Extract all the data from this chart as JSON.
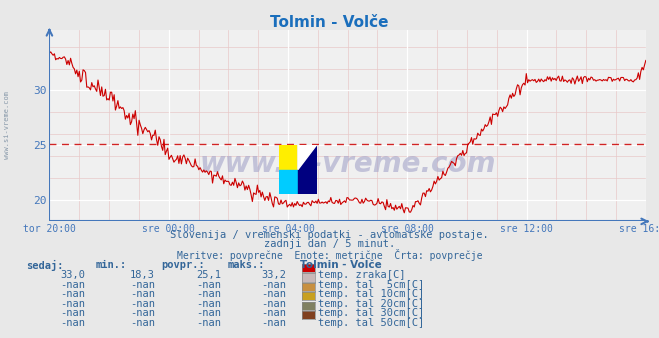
{
  "title": "Tolmin - Volče",
  "title_color": "#1a6ebc",
  "bg_color": "#e8e8e8",
  "plot_bg_color": "#f0f0f0",
  "grid_color_major": "#ffffff",
  "grid_color_minor": "#e8c8c8",
  "line_color": "#cc0000",
  "axis_color": "#4477bb",
  "avg_line_color": "#cc0000",
  "avg_value": 25.1,
  "y_min": 18.0,
  "y_max": 35.5,
  "y_ticks": [
    20,
    25,
    30
  ],
  "x_labels": [
    "tor 20:00",
    "sre 00:00",
    "sre 04:00",
    "sre 08:00",
    "sre 12:00",
    "sre 16:00"
  ],
  "x_tick_positions": [
    0,
    96,
    192,
    288,
    384,
    480
  ],
  "total_points": 480,
  "subtitle1": "Slovenija / vremenski podatki - avtomatske postaje.",
  "subtitle2": "zadnji dan / 5 minut.",
  "subtitle3": "Meritve: povprečne  Enote: metrične  Črta: povprečje",
  "subtitle_color": "#336699",
  "table_header_color": "#336699",
  "table_data_color": "#336699",
  "legend_title": "Tolmin - Volče",
  "legend_items": [
    {
      "label": "temp. zraka[C]",
      "color": "#cc0000"
    },
    {
      "label": "temp. tal  5cm[C]",
      "color": "#c8b8b8"
    },
    {
      "label": "temp. tal 10cm[C]",
      "color": "#c89040"
    },
    {
      "label": "temp. tal 20cm[C]",
      "color": "#c8a020"
    },
    {
      "label": "temp. tal 30cm[C]",
      "color": "#808060"
    },
    {
      "label": "temp. tal 50cm[C]",
      "color": "#804020"
    }
  ],
  "table_rows": [
    {
      "sedaj": "33,0",
      "min": "18,3",
      "povpr": "25,1",
      "maks": "33,2"
    },
    {
      "sedaj": "-nan",
      "min": "-nan",
      "povpr": "-nan",
      "maks": "-nan"
    },
    {
      "sedaj": "-nan",
      "min": "-nan",
      "povpr": "-nan",
      "maks": "-nan"
    },
    {
      "sedaj": "-nan",
      "min": "-nan",
      "povpr": "-nan",
      "maks": "-nan"
    },
    {
      "sedaj": "-nan",
      "min": "-nan",
      "povpr": "-nan",
      "maks": "-nan"
    },
    {
      "sedaj": "-nan",
      "min": "-nan",
      "povpr": "-nan",
      "maks": "-nan"
    }
  ],
  "watermark": "www.si-vreme.com",
  "watermark_color": "#aaaacc"
}
